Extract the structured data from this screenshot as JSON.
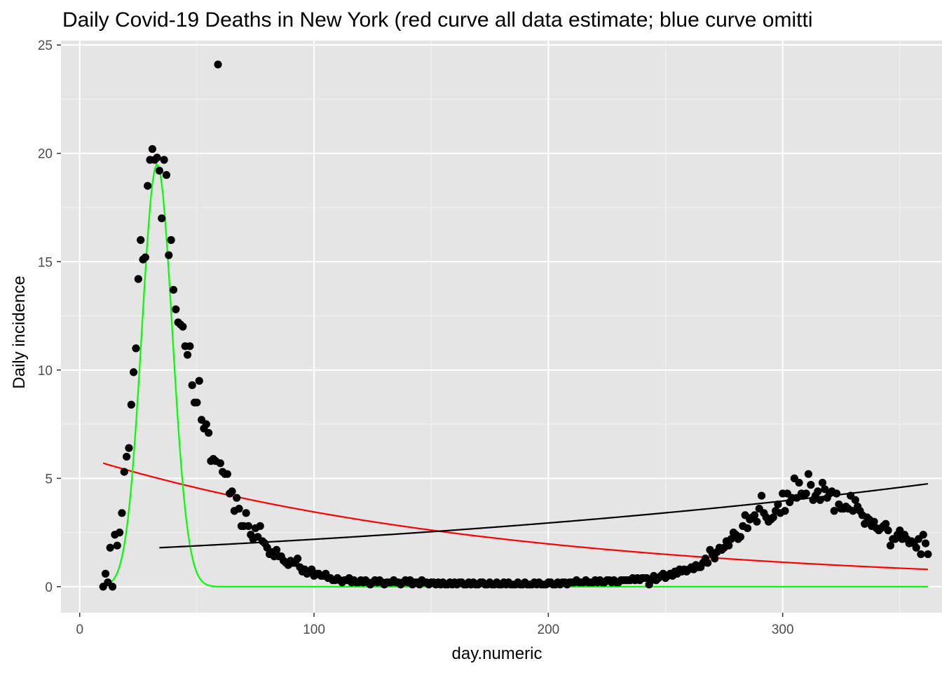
{
  "chart_data": {
    "type": "scatter",
    "title": "Daily Covid-19 Deaths in New York (red curve all data estimate; blue curve omitti",
    "xlabel": "day.numeric",
    "ylabel": "Daily incidence",
    "xlim": [
      -8,
      368
    ],
    "ylim": [
      -1.2,
      25.2
    ],
    "x_ticks": [
      0,
      100,
      200,
      300
    ],
    "x_tick_labels": [
      "0",
      "100",
      "200",
      "300"
    ],
    "y_ticks": [
      0,
      5,
      10,
      15,
      20,
      25
    ],
    "y_tick_labels": [
      "0",
      "5",
      "10",
      "15",
      "20",
      "25"
    ],
    "grid": true,
    "legend": "none",
    "colors": {
      "panel": "#e5e5e5",
      "grid_major": "#ffffff",
      "points": "#000000",
      "red_curve": "#ff0000",
      "green_curve": "#00ff00",
      "black_curve": "#000000"
    },
    "series": [
      {
        "type": "scatter",
        "x": [
          10,
          11,
          12,
          13,
          14,
          15,
          16,
          17,
          18,
          19,
          20,
          21,
          22,
          23,
          24,
          25,
          26,
          27,
          28,
          29,
          30,
          31,
          32,
          33,
          34,
          35,
          36,
          37,
          38,
          39,
          40,
          41,
          42,
          43,
          44,
          45,
          46,
          47,
          48,
          49,
          50,
          51,
          52,
          53,
          54,
          55,
          56,
          57,
          58,
          59,
          60,
          61,
          62,
          63,
          64,
          65,
          66,
          67,
          68,
          69,
          70,
          71,
          72,
          73,
          74,
          75,
          76,
          77,
          78,
          79,
          80,
          81,
          82,
          83,
          84,
          85,
          86,
          87,
          88,
          89,
          90,
          91,
          92,
          93,
          94,
          95,
          96,
          97,
          98,
          99,
          100,
          101,
          102,
          103,
          104,
          105,
          106,
          107,
          108,
          109,
          110,
          111,
          112,
          113,
          114,
          115,
          116,
          117,
          118,
          119,
          120,
          121,
          122,
          123,
          124,
          125,
          126,
          127,
          128,
          129,
          130,
          131,
          132,
          133,
          134,
          135,
          136,
          137,
          138,
          139,
          140,
          141,
          142,
          143,
          144,
          145,
          146,
          147,
          148,
          149,
          150,
          151,
          152,
          153,
          154,
          155,
          156,
          157,
          158,
          159,
          160,
          161,
          162,
          163,
          164,
          165,
          166,
          167,
          168,
          169,
          170,
          171,
          172,
          173,
          174,
          175,
          176,
          177,
          178,
          179,
          180,
          181,
          182,
          183,
          184,
          185,
          186,
          187,
          188,
          189,
          190,
          191,
          192,
          193,
          194,
          195,
          196,
          197,
          198,
          199,
          200,
          201,
          202,
          203,
          204,
          205,
          206,
          207,
          208,
          209,
          210,
          211,
          212,
          213,
          214,
          215,
          216,
          217,
          218,
          219,
          220,
          221,
          222,
          223,
          224,
          225,
          226,
          227,
          228,
          229,
          230,
          231,
          232,
          233,
          234,
          235,
          236,
          237,
          238,
          239,
          240,
          241,
          242,
          243,
          244,
          245,
          246,
          247,
          248,
          249,
          250,
          251,
          252,
          253,
          254,
          255,
          256,
          257,
          258,
          259,
          260,
          261,
          262,
          263,
          264,
          265,
          266,
          267,
          268,
          269,
          270,
          271,
          272,
          273,
          274,
          275,
          276,
          277,
          278,
          279,
          280,
          281,
          282,
          283,
          284,
          285,
          286,
          287,
          288,
          289,
          290,
          291,
          292,
          293,
          294,
          295,
          296,
          297,
          298,
          299,
          300,
          301,
          302,
          303,
          304,
          305,
          306,
          307,
          308,
          309,
          310,
          311,
          312,
          313,
          314,
          315,
          316,
          317,
          318,
          319,
          320,
          321,
          322,
          323,
          324,
          325,
          326,
          327,
          328,
          329,
          330,
          331,
          332,
          333,
          334,
          335,
          336,
          337,
          338,
          339,
          340,
          341,
          342,
          343,
          344,
          345,
          346,
          347,
          348,
          349,
          350,
          351,
          352,
          353,
          354,
          355,
          356,
          357,
          358,
          359,
          360,
          361,
          362
        ],
        "y": [
          0,
          0.6,
          0.2,
          1.8,
          0,
          2.4,
          1.9,
          2.5,
          3.4,
          5.3,
          6,
          6.4,
          8.4,
          9.9,
          11,
          14.2,
          16,
          15.1,
          15.2,
          18.5,
          19.7,
          20.2,
          19.7,
          19.8,
          19.2,
          17,
          19.7,
          19,
          15.3,
          16,
          13.7,
          12.8,
          12.2,
          12.1,
          12,
          11.1,
          10.7,
          11.1,
          9.3,
          8.5,
          8.5,
          9.5,
          7.7,
          7.3,
          7.5,
          7.1,
          5.8,
          5.9,
          5.8,
          24.1,
          5.7,
          5.3,
          5.2,
          5.2,
          4.3,
          4.4,
          3.5,
          4.1,
          3.6,
          2.8,
          2.8,
          3.4,
          2.8,
          2.4,
          2.2,
          2.7,
          2.3,
          2.8,
          2.1,
          2,
          1.8,
          1.5,
          1.6,
          1.4,
          1.7,
          1.4,
          1.4,
          1.2,
          1.1,
          1.0,
          1.2,
          1.1,
          1.1,
          1.3,
          0.9,
          0.7,
          0.8,
          0.6,
          0.7,
          0.8,
          0.5,
          0.6,
          0.6,
          0.5,
          0.5,
          0.6,
          0.4,
          0.4,
          0.3,
          0.3,
          0.4,
          0.3,
          0.2,
          0.3,
          0.3,
          0.4,
          0.2,
          0.3,
          0.2,
          0.2,
          0.3,
          0.2,
          0.3,
          0.2,
          0.1,
          0.2,
          0.3,
          0.2,
          0.3,
          0.2,
          0.1,
          0.2,
          0.2,
          0.2,
          0.3,
          0.2,
          0.2,
          0.1,
          0.2,
          0.3,
          0.2,
          0.3,
          0.1,
          0.2,
          0.2,
          0.1,
          0.3,
          0.2,
          0.2,
          0.1,
          0.2,
          0.2,
          0.1,
          0.2,
          0.1,
          0.2,
          0.1,
          0.1,
          0.2,
          0.1,
          0.2,
          0.1,
          0.2,
          0.2,
          0.1,
          0.1,
          0.2,
          0.1,
          0.2,
          0.1,
          0.1,
          0.2,
          0.2,
          0.1,
          0.1,
          0.2,
          0.1,
          0.1,
          0.2,
          0.1,
          0.1,
          0.2,
          0.1,
          0.2,
          0.1,
          0.1,
          0.1,
          0.2,
          0.1,
          0.1,
          0.2,
          0.1,
          0.1,
          0.1,
          0.2,
          0.1,
          0.2,
          0.1,
          0.1,
          0.1,
          0.2,
          0.2,
          0.1,
          0.1,
          0.2,
          0.1,
          0.2,
          0.2,
          0.1,
          0.2,
          0.2,
          0.2,
          0.3,
          0.2,
          0.2,
          0.2,
          0.3,
          0.2,
          0.2,
          0.2,
          0.3,
          0.2,
          0.3,
          0.2,
          0.2,
          0.3,
          0.3,
          0.2,
          0.3,
          0.2,
          0.2,
          0.3,
          0.3,
          0.3,
          0.3,
          0.3,
          0.4,
          0.3,
          0.4,
          0.3,
          0.4,
          0.4,
          0.4,
          0.1,
          0.3,
          0.5,
          0.3,
          0.4,
          0.5,
          0.6,
          0.4,
          0.5,
          0.6,
          0.5,
          0.7,
          0.6,
          0.8,
          0.7,
          0.8,
          0.7,
          0.8,
          0.9,
          0.8,
          1,
          0.9,
          0.9,
          1.1,
          1.3,
          1.1,
          1.7,
          1.5,
          1.3,
          1.6,
          1.8,
          1.7,
          1.8,
          2.1,
          1.9,
          2.2,
          2.5,
          2.4,
          2.2,
          2.3,
          2.8,
          3.3,
          2.7,
          3.1,
          3.2,
          3.3,
          3.0,
          3.6,
          4.2,
          3.4,
          3.2,
          3.0,
          3.1,
          3.2,
          3.5,
          3.8,
          3.4,
          4.3,
          3.5,
          4.3,
          3.9,
          4.1,
          5.0,
          4.1,
          4.8,
          4.3,
          4.2,
          4.3,
          5.2,
          4.7,
          4.0,
          4.2,
          4.4,
          4.0,
          4.8,
          4.5,
          4.1,
          4.3,
          4.4,
          3.5,
          4.3,
          3.8,
          3.6,
          3.6,
          3.7,
          3.6,
          4.2,
          3.5,
          4.0,
          3.7,
          3.5,
          3.3,
          2.9,
          3.2,
          3.1,
          2.8,
          3.0,
          2.7,
          2.6,
          2.7,
          2.8,
          2.9,
          2.6,
          1.9,
          2.2,
          2.2,
          2.4,
          2.6,
          2.2,
          2.4,
          2.2,
          2.0,
          2.1,
          2.0,
          1.8,
          2.2,
          1.5,
          2.4,
          2.0,
          1.5
        ]
      },
      {
        "type": "line",
        "color": "red",
        "x": [
          10,
          362
        ],
        "model": "exponential",
        "start": 5.7,
        "end": 0.8
      },
      {
        "type": "line",
        "color": "green",
        "x": [
          10,
          362
        ],
        "model": "gaussian",
        "peak_x": 33,
        "peak_y": 19.5,
        "sd": 6.5
      },
      {
        "type": "line",
        "color": "black",
        "x": [
          34,
          362
        ],
        "model": "exponential-growth",
        "start": 1.8,
        "end": 4.75
      }
    ]
  }
}
